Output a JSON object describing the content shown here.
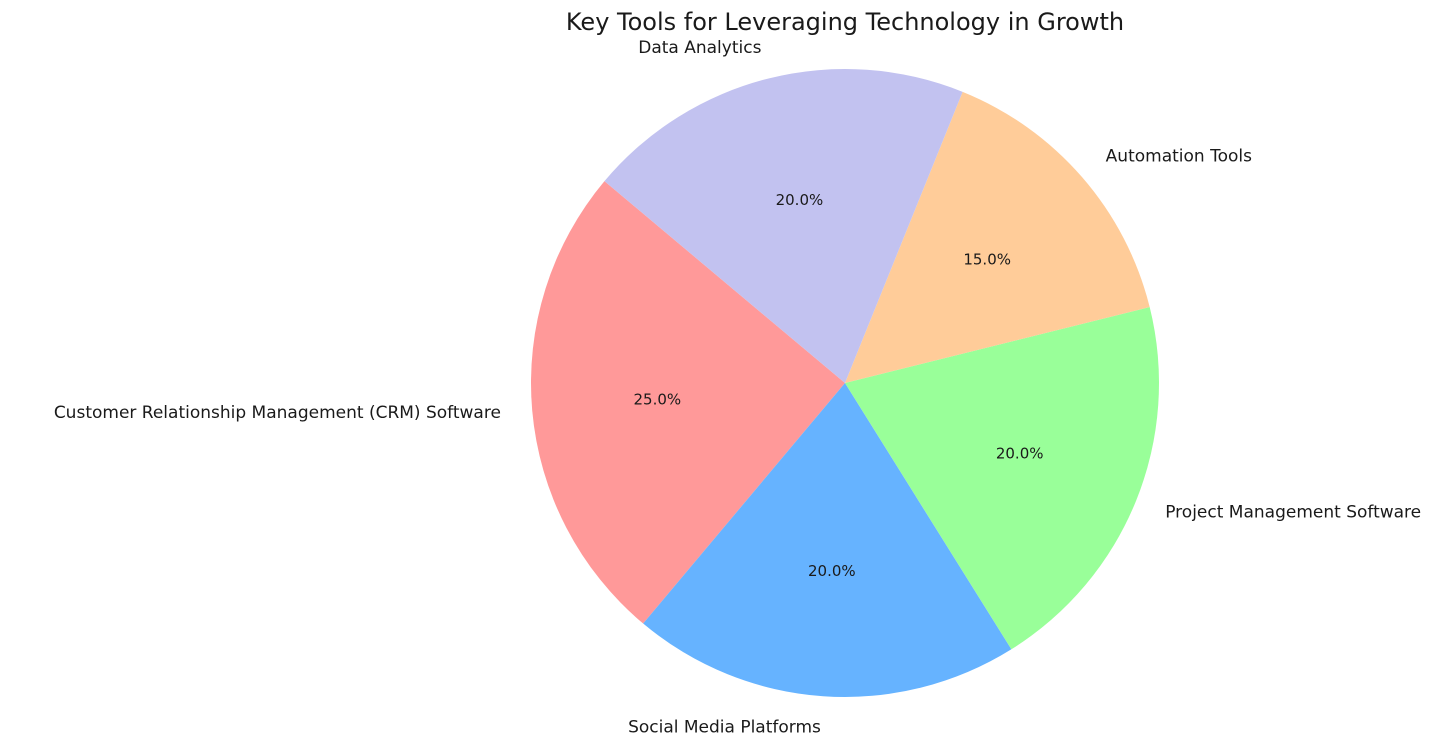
{
  "chart_data": {
    "type": "pie",
    "title": "Key Tools for Leveraging Technology in Growth",
    "categories": [
      "Customer Relationship Management (CRM) Software",
      "Social Media Platforms",
      "Project Management Software",
      "Automation Tools",
      "Data Analytics"
    ],
    "values": [
      25,
      20,
      20,
      15,
      20
    ],
    "percent_labels": [
      "25.0%",
      "20.0%",
      "20.0%",
      "15.0%",
      "20.0%"
    ],
    "colors": [
      "#ff9999",
      "#66b3ff",
      "#99ff99",
      "#ffcc99",
      "#c2c2f0"
    ],
    "start_angle_deg": 140,
    "counterclock": true,
    "legend": "none"
  }
}
